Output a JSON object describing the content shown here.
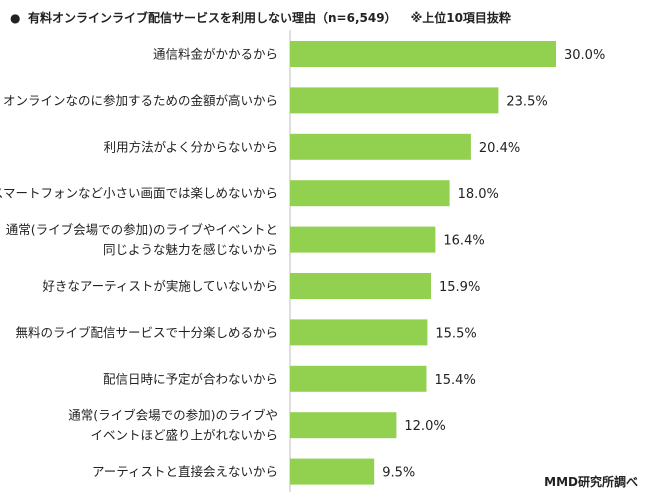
{
  "header": {
    "bullet": "●",
    "title": "有料オンラインライブ配信サービスを利用しない理由（n=6,549）",
    "note": "※上位10項目抜粋"
  },
  "footer": {
    "source": "MMD研究所調べ"
  },
  "colors": {
    "bar": "#92d050",
    "axis": "#bfbfbf",
    "text": "#222222"
  },
  "chart_data": {
    "type": "bar",
    "orientation": "horizontal",
    "title": "有料オンラインライブ配信サービスを利用しない理由（n=6,549）",
    "categories": [
      [
        "通信料金がかかるから"
      ],
      [
        "オンラインなのに参加するための金額が高いから"
      ],
      [
        "利用方法がよく分からないから"
      ],
      [
        "スマートフォンなど小さい画面では楽しめないから"
      ],
      [
        "通常(ライブ会場での参加)のライブやイベントと",
        "同じような魅力を感じないから"
      ],
      [
        "好きなアーティストが実施していないから"
      ],
      [
        "無料のライブ配信サービスで十分楽しめるから"
      ],
      [
        "配信日時に予定が合わないから"
      ],
      [
        "通常(ライブ会場での参加)のライブや",
        "イベントほど盛り上がれないから"
      ],
      [
        "アーティストと直接会えないから"
      ]
    ],
    "values": [
      30.0,
      23.5,
      20.4,
      18.0,
      16.4,
      15.9,
      15.5,
      15.4,
      12.0,
      9.5
    ],
    "value_labels": [
      "30.0%",
      "23.5%",
      "20.4%",
      "18.0%",
      "16.4%",
      "15.9%",
      "15.5%",
      "15.4%",
      "12.0%",
      "9.5%"
    ],
    "unit": "%",
    "grid": false,
    "legend": "none"
  }
}
